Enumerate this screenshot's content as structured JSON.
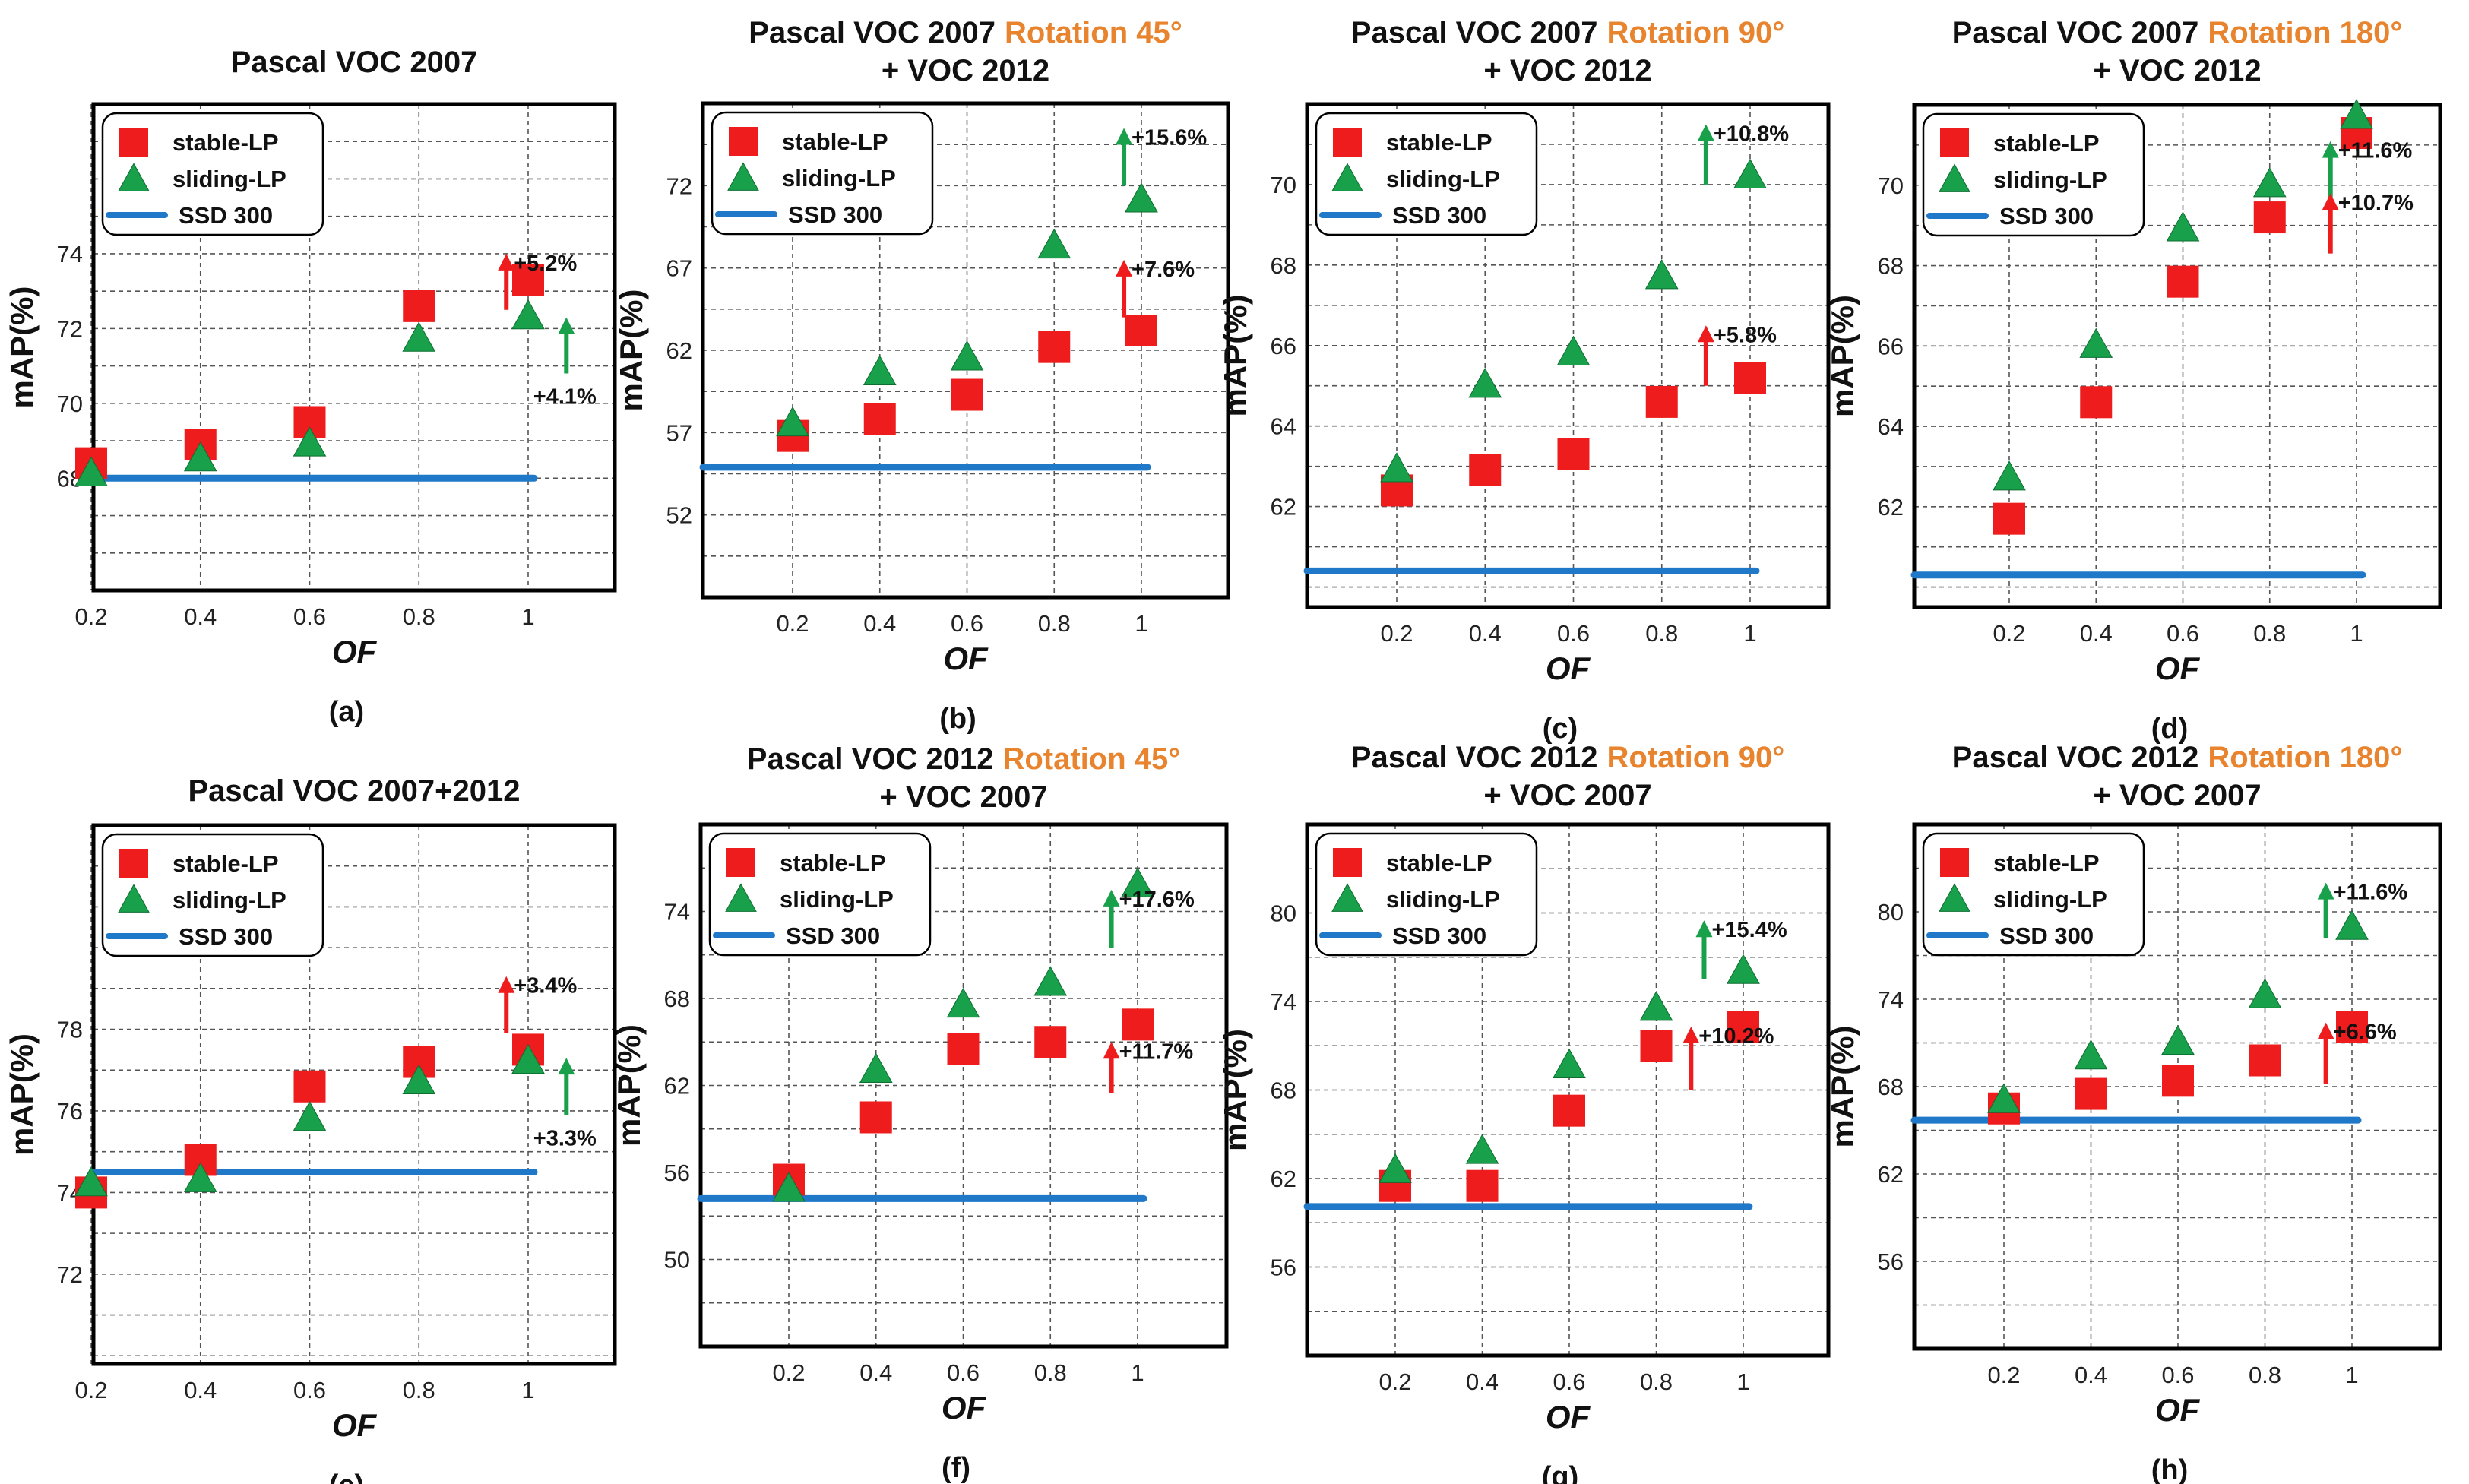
{
  "colors": {
    "stable": "#ee1c1c",
    "sliding": "#19a04b",
    "baseline": "#1f78c8",
    "accent": "#e8832e",
    "grid": "#555555"
  },
  "chart_data": [
    {
      "type": "scatter",
      "panel_label": "(a)",
      "title": "Pascal VOC 2007",
      "title_accent": "",
      "subtitle": "",
      "xlabel": "OF",
      "ylabel": "mAP(%)",
      "x": [
        0.2,
        0.4,
        0.6,
        0.8,
        1
      ],
      "x_ticks": [
        "0.2",
        "0.4",
        "0.6",
        "0.8",
        "1"
      ],
      "ylim": [
        65,
        78
      ],
      "y_ticks": [
        68,
        70,
        72,
        74
      ],
      "series": [
        {
          "name": "stable-LP",
          "values": [
            68.4,
            68.9,
            69.5,
            72.6,
            73.3
          ]
        },
        {
          "name": "sliding-LP",
          "values": [
            68.1,
            68.5,
            68.9,
            71.7,
            72.3
          ]
        },
        {
          "name": "SSD 300",
          "value": 68.0
        }
      ],
      "annotations": [
        {
          "text": "+5.2%",
          "series": "stable-LP",
          "dir": "up",
          "x": 0.96,
          "y_from": 72.5,
          "y_to": 74.0
        },
        {
          "text": "+4.1%",
          "series": "sliding-LP",
          "dir": "up",
          "x": 1.07,
          "y_from": 70.8,
          "y_to": 72.3
        }
      ]
    },
    {
      "type": "scatter",
      "panel_label": "(b)",
      "title": "Pascal VOC 2007",
      "title_accent": "Rotation 45°",
      "subtitle": "+ VOC 2012",
      "xlabel": "OF",
      "ylabel": "mAP(%)",
      "x": [
        0.2,
        0.4,
        0.6,
        0.8,
        1
      ],
      "x_ticks": [
        "0.2",
        "0.4",
        "0.6",
        "0.8",
        "1"
      ],
      "ylim": [
        47,
        77
      ],
      "y_ticks": [
        52,
        57,
        62,
        67,
        72
      ],
      "series": [
        {
          "name": "stable-LP",
          "values": [
            56.8,
            57.8,
            59.3,
            62.2,
            63.2
          ]
        },
        {
          "name": "sliding-LP",
          "values": [
            57.5,
            60.6,
            61.5,
            68.3,
            71.1
          ]
        },
        {
          "name": "SSD 300",
          "value": 54.9
        }
      ],
      "annotations": [
        {
          "text": "+15.6%",
          "series": "sliding-LP",
          "dir": "up",
          "x": 0.96,
          "y_from": 72.0,
          "y_to": 75.5
        },
        {
          "text": "+7.6%",
          "series": "stable-LP",
          "dir": "up",
          "x": 0.96,
          "y_from": 64.0,
          "y_to": 67.5
        }
      ]
    },
    {
      "type": "scatter",
      "panel_label": "(c)",
      "title": "Pascal VOC 2007",
      "title_accent": "Rotation 90°",
      "subtitle": "+ VOC 2012",
      "xlabel": "OF",
      "ylabel": "mAP(%)",
      "x": [
        0.2,
        0.4,
        0.6,
        0.8,
        1
      ],
      "x_ticks": [
        "0.2",
        "0.4",
        "0.6",
        "0.8",
        "1"
      ],
      "ylim": [
        59.5,
        72
      ],
      "y_ticks": [
        62,
        64,
        66,
        68,
        70
      ],
      "series": [
        {
          "name": "stable-LP",
          "values": [
            62.4,
            62.9,
            63.3,
            64.6,
            65.2
          ]
        },
        {
          "name": "sliding-LP",
          "values": [
            62.9,
            65.0,
            65.8,
            67.7,
            70.2
          ]
        },
        {
          "name": "SSD 300",
          "value": 60.4
        }
      ],
      "annotations": [
        {
          "text": "+10.8%",
          "series": "sliding-LP",
          "dir": "up",
          "x": 0.9,
          "y_from": 70.0,
          "y_to": 71.5
        },
        {
          "text": "+5.8%",
          "series": "stable-LP",
          "dir": "up",
          "x": 0.9,
          "y_from": 65.0,
          "y_to": 66.5
        }
      ]
    },
    {
      "type": "scatter",
      "panel_label": "(d)",
      "title": "Pascal VOC 2007",
      "title_accent": "Rotation 180°",
      "subtitle": "+ VOC 2012",
      "xlabel": "OF",
      "ylabel": "mAP(%)",
      "x": [
        0.2,
        0.4,
        0.6,
        0.8,
        1
      ],
      "x_ticks": [
        "0.2",
        "0.4",
        "0.6",
        "0.8",
        "1"
      ],
      "ylim": [
        59.5,
        72
      ],
      "y_ticks": [
        62,
        64,
        66,
        68,
        70
      ],
      "series": [
        {
          "name": "stable-LP",
          "values": [
            61.7,
            64.6,
            67.6,
            69.2,
            71.3
          ]
        },
        {
          "name": "sliding-LP",
          "values": [
            62.7,
            66.0,
            68.9,
            70.0,
            71.7
          ]
        },
        {
          "name": "SSD 300",
          "value": 60.3
        }
      ],
      "annotations": [
        {
          "text": "+11.6%",
          "series": "sliding-LP",
          "dir": "up",
          "x": 0.94,
          "y_from": 69.7,
          "y_to": 71.1
        },
        {
          "text": "+10.7%",
          "series": "stable-LP",
          "dir": "up",
          "x": 0.94,
          "y_from": 68.3,
          "y_to": 69.8
        }
      ]
    },
    {
      "type": "scatter",
      "panel_label": "(e)",
      "title": "Pascal VOC 2007+2012",
      "title_accent": "",
      "subtitle": "",
      "xlabel": "OF",
      "ylabel": "mAP(%)",
      "x": [
        0.2,
        0.4,
        0.6,
        0.8,
        1
      ],
      "x_ticks": [
        "0.2",
        "0.4",
        "0.6",
        "0.8",
        "1"
      ],
      "ylim": [
        69.8,
        83
      ],
      "y_ticks": [
        72,
        74,
        76,
        78
      ],
      "series": [
        {
          "name": "stable-LP",
          "values": [
            74.0,
            74.8,
            76.6,
            77.2,
            77.5
          ]
        },
        {
          "name": "sliding-LP",
          "values": [
            74.2,
            74.3,
            75.8,
            76.7,
            77.2
          ]
        },
        {
          "name": "SSD 300",
          "value": 74.5
        }
      ],
      "annotations": [
        {
          "text": "+3.4%",
          "series": "stable-LP",
          "dir": "up",
          "x": 0.96,
          "y_from": 77.9,
          "y_to": 79.3
        },
        {
          "text": "+3.3%",
          "series": "sliding-LP",
          "dir": "up",
          "x": 1.07,
          "y_from": 75.9,
          "y_to": 77.3
        }
      ]
    },
    {
      "type": "scatter",
      "panel_label": "(f)",
      "title": "Pascal VOC 2012",
      "title_accent": "Rotation 45°",
      "subtitle": "+ VOC 2007",
      "xlabel": "OF",
      "ylabel": "mAP(%)",
      "x": [
        0.2,
        0.4,
        0.6,
        0.8,
        1
      ],
      "x_ticks": [
        "0.2",
        "0.4",
        "0.6",
        "0.8",
        "1"
      ],
      "ylim": [
        44,
        80
      ],
      "y_ticks": [
        50,
        56,
        62,
        68,
        74
      ],
      "series": [
        {
          "name": "stable-LP",
          "values": [
            55.5,
            59.8,
            64.5,
            65.0,
            66.2
          ]
        },
        {
          "name": "sliding-LP",
          "values": [
            54.8,
            63.0,
            67.5,
            69.0,
            75.8
          ]
        },
        {
          "name": "SSD 300",
          "value": 54.2
        }
      ],
      "annotations": [
        {
          "text": "+17.6%",
          "series": "sliding-LP",
          "dir": "up",
          "x": 0.94,
          "y_from": 71.5,
          "y_to": 75.5
        },
        {
          "text": "+11.7%",
          "series": "stable-LP",
          "dir": "up",
          "x": 0.94,
          "y_from": 61.5,
          "y_to": 65.0
        }
      ]
    },
    {
      "type": "scatter",
      "panel_label": "(g)",
      "title": "Pascal VOC 2012",
      "title_accent": "Rotation 90°",
      "subtitle": "+ VOC 2007",
      "xlabel": "OF",
      "ylabel": "mAP(%)",
      "x": [
        0.2,
        0.4,
        0.6,
        0.8,
        1
      ],
      "x_ticks": [
        "0.2",
        "0.4",
        "0.6",
        "0.8",
        "1"
      ],
      "ylim": [
        50,
        86
      ],
      "y_ticks": [
        56,
        62,
        68,
        74,
        80
      ],
      "series": [
        {
          "name": "stable-LP",
          "values": [
            61.5,
            61.5,
            66.6,
            71.0,
            72.3
          ]
        },
        {
          "name": "sliding-LP",
          "values": [
            62.5,
            63.8,
            69.6,
            73.5,
            76.0
          ]
        },
        {
          "name": "SSD 300",
          "value": 60.1
        }
      ],
      "annotations": [
        {
          "text": "+15.4%",
          "series": "sliding-LP",
          "dir": "up",
          "x": 0.91,
          "y_from": 75.5,
          "y_to": 79.5
        },
        {
          "text": "+10.2%",
          "series": "stable-LP",
          "dir": "up",
          "x": 0.88,
          "y_from": 68.0,
          "y_to": 72.3
        }
      ]
    },
    {
      "type": "scatter",
      "panel_label": "(h)",
      "title": "Pascal VOC 2012",
      "title_accent": "Rotation 180°",
      "subtitle": "+ VOC 2007",
      "xlabel": "OF",
      "ylabel": "mAP(%)",
      "x": [
        0.2,
        0.4,
        0.6,
        0.8,
        1
      ],
      "x_ticks": [
        "0.2",
        "0.4",
        "0.6",
        "0.8",
        "1"
      ],
      "ylim": [
        50,
        86
      ],
      "y_ticks": [
        56,
        62,
        68,
        74,
        80
      ],
      "series": [
        {
          "name": "stable-LP",
          "values": [
            66.5,
            67.5,
            68.4,
            69.8,
            72.1
          ]
        },
        {
          "name": "sliding-LP",
          "values": [
            67.0,
            70.0,
            71.0,
            74.2,
            78.9
          ]
        },
        {
          "name": "SSD 300",
          "value": 65.7
        }
      ],
      "annotations": [
        {
          "text": "+11.6%",
          "series": "sliding-LP",
          "dir": "up",
          "x": 0.94,
          "y_from": 78.2,
          "y_to": 82.0
        },
        {
          "text": "+6.6%",
          "series": "stable-LP",
          "dir": "up",
          "x": 0.94,
          "y_from": 68.2,
          "y_to": 72.4
        }
      ]
    }
  ]
}
